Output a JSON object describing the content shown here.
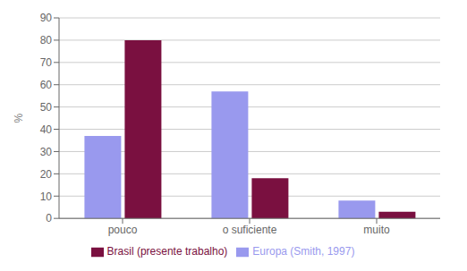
{
  "chart_data": {
    "type": "bar",
    "ylabel": "%",
    "categories": [
      "pouco",
      "o suficiente",
      "muito"
    ],
    "series": [
      {
        "name": "Europa (Smith, 1997)",
        "color": "#9999ee",
        "values": [
          37,
          57,
          8
        ]
      },
      {
        "name": "Brasil (presente trabalho)",
        "color": "#7a1040",
        "values": [
          80,
          18,
          3
        ]
      }
    ],
    "ylim": [
      0,
      90
    ],
    "yticks": [
      0,
      10,
      20,
      30,
      40,
      50,
      60,
      70,
      80,
      90
    ],
    "grid": true,
    "legend": "bottom"
  }
}
